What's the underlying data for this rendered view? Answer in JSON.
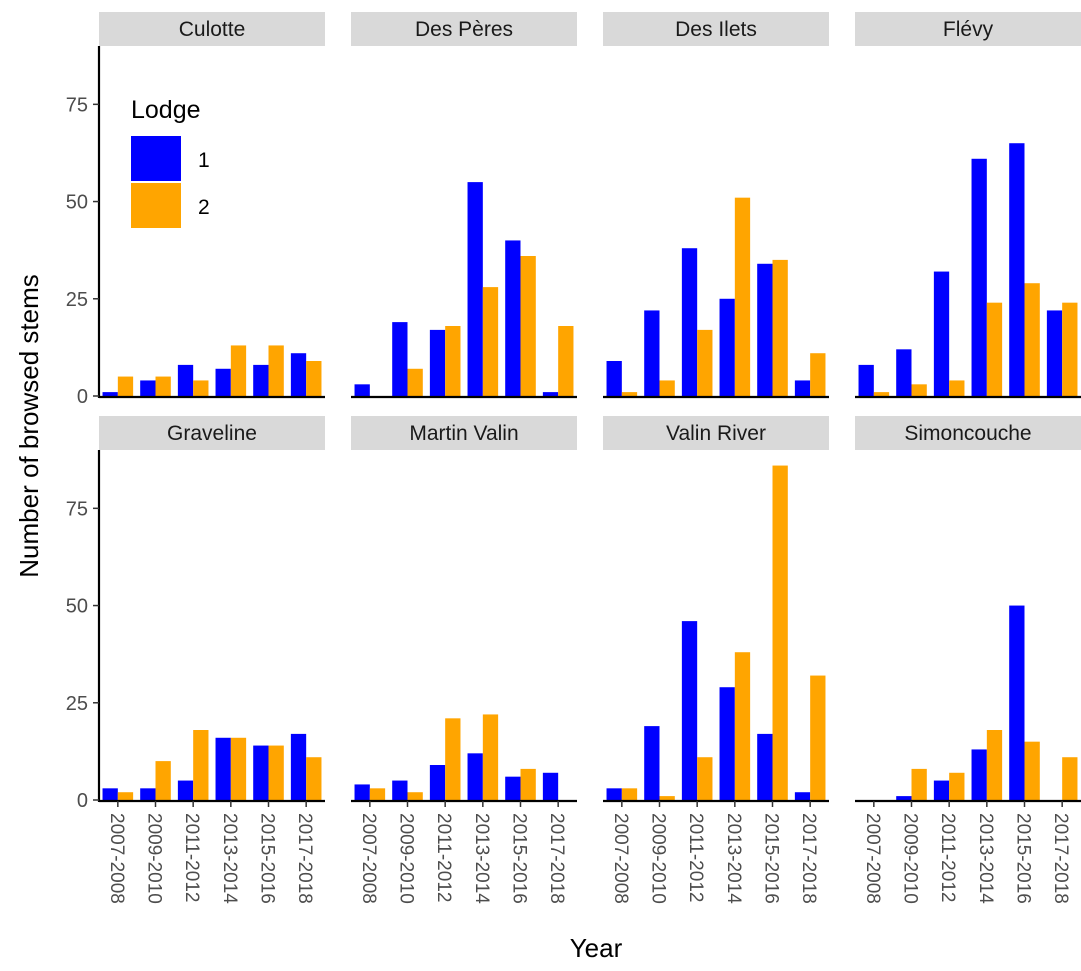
{
  "chart_data": {
    "type": "bar",
    "layout": "faceted bar chart, 2 rows x 4 columns, grouped (dodged) bars",
    "xlabel": "Year",
    "ylabel": "Number of browsed stems",
    "ylim": [
      0,
      90
    ],
    "y_ticks": [
      0,
      25,
      50,
      75
    ],
    "categories": [
      "2007-2008",
      "2009-2010",
      "2011-2012",
      "2013-2014",
      "2015-2016",
      "2017-2018"
    ],
    "grid": false,
    "legend": {
      "title": "Lodge",
      "placement": "inside top-left of first panel",
      "entries": [
        {
          "label": "1",
          "color": "#0000FF"
        },
        {
          "label": "2",
          "color": "#FFA500"
        }
      ]
    },
    "series_colors": {
      "1": "#0000FF",
      "2": "#FFA500"
    },
    "facets": [
      {
        "title": "Culotte",
        "series": [
          {
            "name": "1",
            "values": [
              1,
              4,
              8,
              7,
              8,
              11
            ]
          },
          {
            "name": "2",
            "values": [
              5,
              5,
              4,
              13,
              13,
              9
            ]
          }
        ]
      },
      {
        "title": "Des Pères",
        "series": [
          {
            "name": "1",
            "values": [
              3,
              19,
              17,
              55,
              40,
              1
            ]
          },
          {
            "name": "2",
            "values": [
              0,
              7,
              18,
              28,
              36,
              18
            ]
          }
        ]
      },
      {
        "title": "Des Ilets",
        "series": [
          {
            "name": "1",
            "values": [
              9,
              22,
              38,
              25,
              34,
              4
            ]
          },
          {
            "name": "2",
            "values": [
              1,
              4,
              17,
              51,
              35,
              11
            ]
          }
        ]
      },
      {
        "title": "Flévy",
        "series": [
          {
            "name": "1",
            "values": [
              8,
              12,
              32,
              61,
              65,
              22
            ]
          },
          {
            "name": "2",
            "values": [
              1,
              3,
              4,
              24,
              29,
              24
            ]
          }
        ]
      },
      {
        "title": "Graveline",
        "series": [
          {
            "name": "1",
            "values": [
              3,
              3,
              5,
              16,
              14,
              17
            ]
          },
          {
            "name": "2",
            "values": [
              2,
              10,
              18,
              16,
              14,
              11
            ]
          }
        ]
      },
      {
        "title": "Martin Valin",
        "series": [
          {
            "name": "1",
            "values": [
              4,
              5,
              9,
              12,
              6,
              7
            ]
          },
          {
            "name": "2",
            "values": [
              3,
              2,
              21,
              22,
              8,
              0
            ]
          }
        ]
      },
      {
        "title": "Valin River",
        "series": [
          {
            "name": "1",
            "values": [
              3,
              19,
              46,
              29,
              17,
              2
            ]
          },
          {
            "name": "2",
            "values": [
              3,
              1,
              11,
              38,
              86,
              32
            ]
          }
        ]
      },
      {
        "title": "Simoncouche",
        "series": [
          {
            "name": "1",
            "values": [
              0,
              1,
              5,
              13,
              50,
              0
            ]
          },
          {
            "name": "2",
            "values": [
              0,
              8,
              7,
              18,
              15,
              11
            ]
          }
        ]
      }
    ]
  }
}
